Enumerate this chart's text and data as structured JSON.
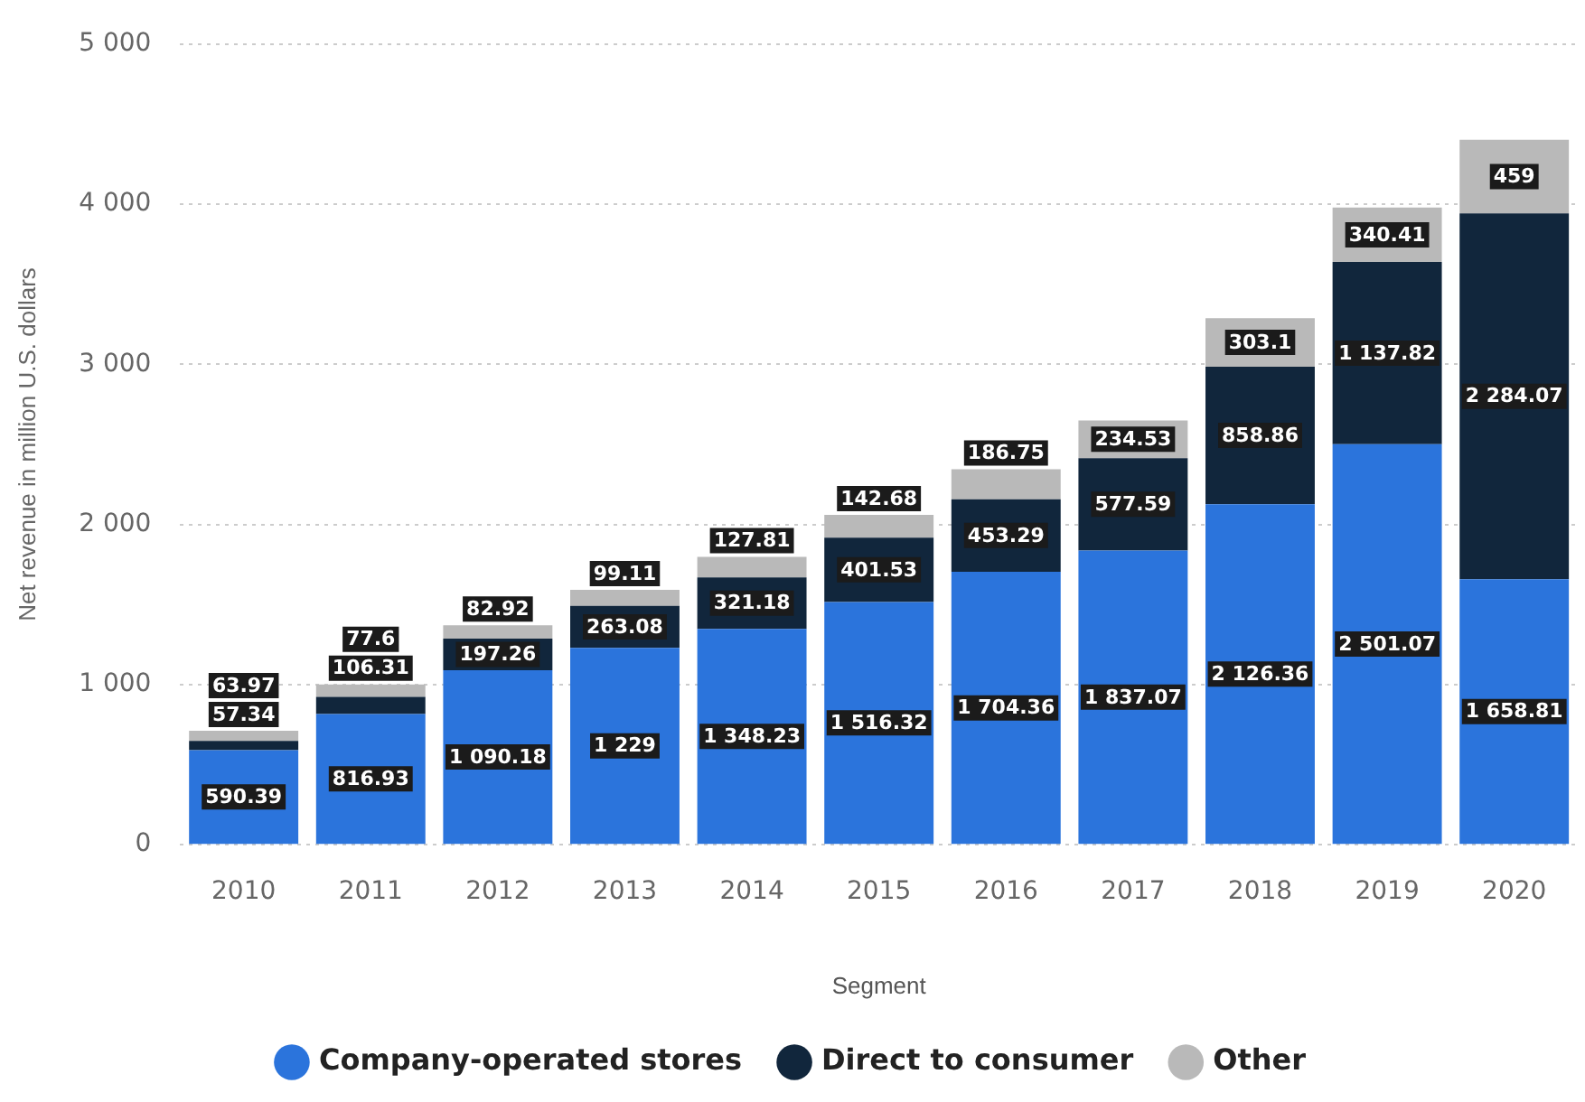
{
  "chart_data": {
    "type": "bar",
    "stacked": true,
    "xlabel": "Segment",
    "ylabel": "Net revenue in million U.S. dollars",
    "categories": [
      "2010",
      "2011",
      "2012",
      "2013",
      "2014",
      "2015",
      "2016",
      "2017",
      "2018",
      "2019",
      "2020"
    ],
    "series": [
      {
        "name": "Company-operated stores",
        "color": "#2b74dc",
        "values": [
          590.39,
          816.93,
          1090.18,
          1229,
          1348.23,
          1516.32,
          1704.36,
          1837.07,
          2126.36,
          2501.07,
          1658.81
        ]
      },
      {
        "name": "Direct to consumer",
        "color": "#11263c",
        "values": [
          57.34,
          106.31,
          197.26,
          263.08,
          321.18,
          401.53,
          453.29,
          577.59,
          858.86,
          1137.82,
          2284.07
        ]
      },
      {
        "name": "Other",
        "color": "#b9b9b9",
        "values": [
          63.97,
          77.6,
          82.92,
          99.11,
          127.81,
          142.68,
          186.75,
          234.53,
          303.1,
          340.41,
          459
        ]
      }
    ],
    "ylim": [
      0,
      5000
    ],
    "yticks": [
      {
        "value": 0,
        "label": "0"
      },
      {
        "value": 1000,
        "label": "1 000"
      },
      {
        "value": 2000,
        "label": "2 000"
      },
      {
        "value": 3000,
        "label": "3 000"
      },
      {
        "value": 4000,
        "label": "4 000"
      },
      {
        "value": 5000,
        "label": "5 000"
      }
    ],
    "grid": "y",
    "legend": "bottom",
    "data_labels": true
  }
}
